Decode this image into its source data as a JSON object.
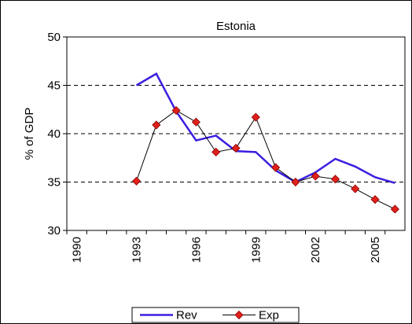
{
  "chart_data": {
    "type": "line",
    "title": "Estonia",
    "y_label": "% of GDP",
    "categories": [
      "1990",
      null,
      null,
      "1993",
      null,
      null,
      "1996",
      null,
      null,
      "1999",
      null,
      null,
      "2002",
      null,
      null,
      "2005",
      null
    ],
    "series": [
      {
        "name": "Rev",
        "color": "#3a1fe0",
        "marker": "none",
        "values": [
          null,
          null,
          null,
          45.0,
          46.2,
          42.3,
          39.3,
          39.8,
          38.2,
          38.1,
          36.2,
          35.0,
          36.0,
          37.4,
          36.6,
          35.5,
          34.9
        ]
      },
      {
        "name": "Exp",
        "color": "#000000",
        "marker": "diamond",
        "marker_color": "#e0201a",
        "values": [
          null,
          null,
          null,
          35.1,
          40.9,
          42.4,
          41.2,
          38.1,
          38.5,
          41.7,
          36.5,
          35.0,
          35.6,
          35.3,
          34.3,
          33.2,
          32.2
        ]
      }
    ],
    "ylim": [
      30,
      50
    ],
    "yticks": [
      30,
      35,
      40,
      45,
      50
    ],
    "grid": true,
    "legend": "bottom"
  }
}
